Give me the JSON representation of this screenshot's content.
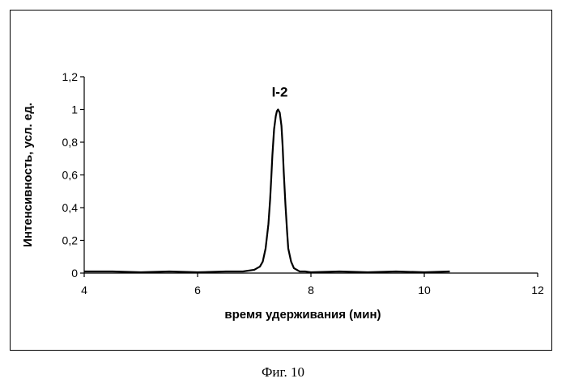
{
  "chart_data": {
    "type": "line",
    "xlabel": "время удерживания (мин)",
    "ylabel": "Интенсивность, усл. ед.",
    "xlim": [
      4,
      12
    ],
    "ylim": [
      0,
      1.2
    ],
    "x_ticks": [
      "4",
      "6",
      "8",
      "10",
      "12"
    ],
    "y_ticks": [
      "0",
      "0,2",
      "0,4",
      "0,6",
      "0,8",
      "1",
      "1,2"
    ],
    "grid": false,
    "legend": "none",
    "line_color": "#000000",
    "annotations": [
      {
        "text": "I-2",
        "x": 7.45,
        "y": 1.08
      }
    ],
    "series": [
      {
        "x": [
          4.0,
          4.5,
          5.0,
          5.5,
          6.0,
          6.5,
          6.8,
          7.0,
          7.1,
          7.15,
          7.2,
          7.25,
          7.28,
          7.3,
          7.32,
          7.35,
          7.38,
          7.4,
          7.42,
          7.45,
          7.48,
          7.5,
          7.52,
          7.55,
          7.58,
          7.6,
          7.65,
          7.7,
          7.8,
          7.9,
          8.0,
          8.5,
          9.0,
          9.5,
          10.0,
          10.45
        ],
        "y": [
          0.01,
          0.01,
          0.005,
          0.01,
          0.005,
          0.01,
          0.01,
          0.02,
          0.04,
          0.07,
          0.15,
          0.3,
          0.45,
          0.58,
          0.72,
          0.88,
          0.96,
          0.99,
          1.0,
          0.98,
          0.9,
          0.78,
          0.62,
          0.42,
          0.25,
          0.15,
          0.07,
          0.03,
          0.01,
          0.01,
          0.005,
          0.01,
          0.005,
          0.01,
          0.005,
          0.01
        ]
      }
    ]
  },
  "caption": "Фиг. 10"
}
